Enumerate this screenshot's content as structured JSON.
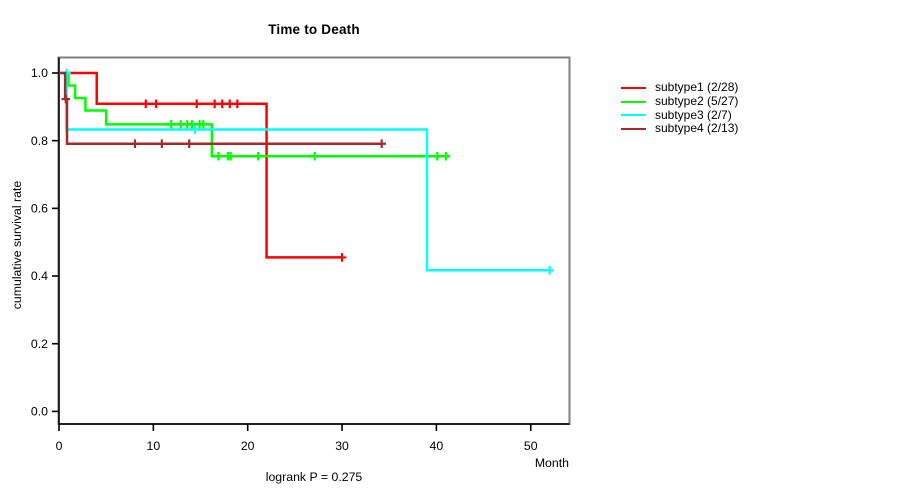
{
  "header": {
    "title": "Time to Death"
  },
  "chart_data": {
    "type": "line",
    "variant": "kaplan-meier-step",
    "title": "Time to Death",
    "xlabel": "Month",
    "ylabel": "cumulative survival rate",
    "annotation": "logrank P = 0.275",
    "xlim": [
      0,
      54
    ],
    "ylim": [
      0.0,
      1.0
    ],
    "x_ticks": [
      0,
      10,
      20,
      30,
      40,
      50
    ],
    "y_ticks": [
      0.0,
      0.2,
      0.4,
      0.6,
      0.8,
      1.0
    ],
    "grid": false,
    "legend_position": "right-outside",
    "box_color": "#808080",
    "axis_color": "#000000",
    "series": [
      {
        "name": "subtype1",
        "legend_label": "subtype1 (2/28)",
        "color": "#FF0000",
        "steps": [
          [
            0,
            1.0
          ],
          [
            4,
            0.909
          ],
          [
            22,
            0.455
          ]
        ],
        "end_time": 30,
        "censors": [
          [
            9.2,
            0.909
          ],
          [
            10.3,
            0.909
          ],
          [
            14.6,
            0.909
          ],
          [
            16.5,
            0.909
          ],
          [
            17.3,
            0.909
          ],
          [
            18.1,
            0.909
          ],
          [
            18.9,
            0.909
          ],
          [
            30,
            0.455
          ]
        ]
      },
      {
        "name": "subtype2",
        "legend_label": "subtype2 (5/27)",
        "color": "#00FF00",
        "steps": [
          [
            0,
            1.0
          ],
          [
            1,
            0.963
          ],
          [
            1.7,
            0.926
          ],
          [
            2.8,
            0.889
          ],
          [
            5,
            0.848
          ],
          [
            16.2,
            0.754
          ]
        ],
        "end_time": 41.4,
        "censors": [
          [
            11.9,
            0.848
          ],
          [
            12.9,
            0.848
          ],
          [
            13.6,
            0.848
          ],
          [
            14.1,
            0.848
          ],
          [
            14.9,
            0.848
          ],
          [
            15.3,
            0.848
          ],
          [
            16.9,
            0.754
          ],
          [
            17.9,
            0.754
          ],
          [
            18.2,
            0.754
          ],
          [
            21.1,
            0.754
          ],
          [
            27.1,
            0.754
          ],
          [
            40.1,
            0.754
          ],
          [
            41.0,
            0.754
          ]
        ]
      },
      {
        "name": "subtype3",
        "legend_label": "subtype3 (2/7)",
        "color": "#00FFFF",
        "steps": [
          [
            0,
            1.0
          ],
          [
            0.8,
            0.833
          ],
          [
            39,
            0.417
          ]
        ],
        "end_time": 52,
        "censors": [
          [
            0.8,
            1.0
          ],
          [
            14.4,
            0.833
          ],
          [
            52,
            0.417
          ]
        ]
      },
      {
        "name": "subtype4",
        "legend_label": "subtype4 (2/13)",
        "color": "#A52A2A",
        "steps": [
          [
            0,
            1.0
          ],
          [
            0.65,
            0.923
          ],
          [
            0.85,
            0.791
          ]
        ],
        "end_time": 34.2,
        "censors": [
          [
            0.72,
            0.923
          ],
          [
            8.05,
            0.791
          ],
          [
            10.9,
            0.791
          ],
          [
            13.8,
            0.791
          ],
          [
            34.2,
            0.791
          ]
        ]
      }
    ]
  }
}
